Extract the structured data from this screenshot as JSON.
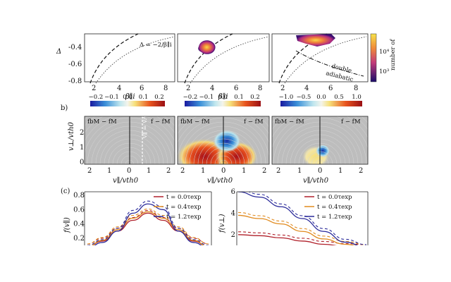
{
  "panel_labels": [
    "b)",
    "(c)"
  ],
  "row_a": {
    "ylabel": "Δ",
    "xlabel": "β∥i",
    "xticks": [
      "2",
      "4",
      "6",
      "8"
    ],
    "yticks": [
      "-0.4",
      "-0.6",
      "-0.8"
    ],
    "annotation_top": "Δ = −2/β∥i",
    "annotation_bottom_1": "double",
    "annotation_bottom_2": "adiabatic",
    "colorbar_ticks": [
      "10⁴",
      "10³"
    ],
    "colorbar_label": "number of"
  },
  "row_b": {
    "colorbar_ticks": [
      [
        "−0.2",
        "−0.1",
        "0.0",
        "0.1",
        "0.2"
      ],
      [
        "−0.2",
        "−0.1",
        "0.0",
        "0.1",
        "0.2"
      ],
      [
        "−1.0",
        "−0.5",
        "0.0",
        "0.5",
        "1.0"
      ]
    ],
    "ylabel": "v⊥/vth0",
    "yticks": [
      "0",
      "1",
      "2"
    ],
    "xlabel": "v∥/vth0",
    "xticks": [
      "2",
      "1",
      "0",
      "1",
      "2"
    ],
    "left_labels": [
      "fbM − fM",
      "fbM − fM",
      "fbM − fM"
    ],
    "right_labels": [
      "f − fM",
      "f − fM",
      "f − fM"
    ],
    "vertical_annot": "v∥ = vA0"
  },
  "row_c": {
    "left": {
      "ylabel": "f(v∥)",
      "yticks": [
        "0.8",
        "0.6",
        "0.4",
        "0.2"
      ]
    },
    "right": {
      "ylabel": "f(v⊥)",
      "yticks": [
        "6",
        "4",
        "2"
      ]
    },
    "legend": [
      {
        "label": "t = 0.0τexp",
        "color": "#b0202a"
      },
      {
        "label": "t = 0.4τexp",
        "color": "#e08a1e"
      },
      {
        "label": "t = 1.2τexp",
        "color": "#2a2a9a"
      }
    ]
  },
  "chart_data": [
    {
      "type": "line",
      "panel": "c-left",
      "ylabel": "f(v∥)",
      "ylim": [
        0.1,
        0.85
      ],
      "x": [
        -2.0,
        -1.5,
        -1.0,
        -0.5,
        0.0,
        0.5,
        1.0,
        1.5,
        2.0
      ],
      "series": [
        {
          "name": "t = 0.0τexp",
          "values": [
            0.08,
            0.16,
            0.3,
            0.45,
            0.55,
            0.45,
            0.3,
            0.16,
            0.08
          ]
        },
        {
          "name": "t = 0.4τexp",
          "values": [
            0.08,
            0.17,
            0.32,
            0.48,
            0.57,
            0.48,
            0.32,
            0.17,
            0.08
          ]
        },
        {
          "name": "t = 1.2τexp",
          "values": [
            0.06,
            0.14,
            0.3,
            0.55,
            0.68,
            0.6,
            0.3,
            0.14,
            0.06
          ]
        }
      ]
    },
    {
      "type": "line",
      "panel": "c-right",
      "ylabel": "f(v⊥)",
      "ylim": [
        1,
        6
      ],
      "x": [
        0.0,
        0.3,
        0.6,
        0.9,
        1.2,
        1.5,
        1.8
      ],
      "series": [
        {
          "name": "t = 0.0τexp",
          "values": [
            2.0,
            1.9,
            1.7,
            1.4,
            1.1,
            0.9,
            0.8
          ]
        },
        {
          "name": "t = 0.4τexp",
          "values": [
            3.8,
            3.5,
            3.0,
            2.3,
            1.6,
            1.1,
            0.8
          ]
        },
        {
          "name": "t = 1.2τexp",
          "values": [
            6.0,
            5.5,
            4.6,
            3.5,
            2.3,
            1.3,
            0.8
          ]
        }
      ]
    }
  ]
}
